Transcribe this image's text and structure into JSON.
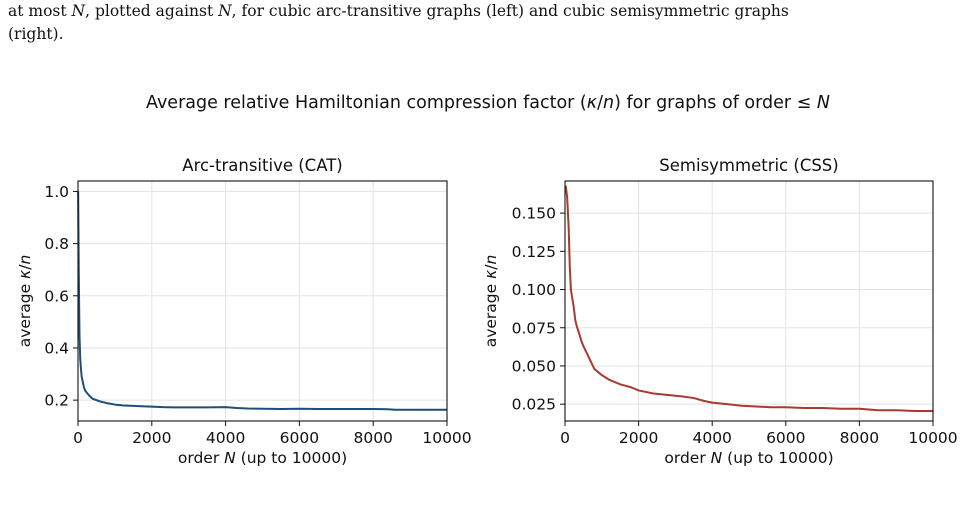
{
  "caption": {
    "line1_prefix": "at most ",
    "line1_var": "N",
    "line1_mid": ", plotted against ",
    "line1_var2": "N",
    "line1_suffix": ", for cubic arc-transitive graphs (left) and cubic semisymmetric graphs",
    "line2": "(right)."
  },
  "figure": {
    "suptitle_prefix": "Average relative Hamiltonian compression factor (",
    "suptitle_kappa": "κ",
    "suptitle_slash": "/",
    "suptitle_n": "n",
    "suptitle_mid": ") for graphs of order ",
    "suptitle_le": "≤",
    "suptitle_N": "N"
  },
  "chart_data": [
    {
      "type": "line",
      "title": "Arc-transitive (CAT)",
      "xlabel": "order N (up to 10000)",
      "ylabel": "average κ/n",
      "color": "#1f4e79",
      "xlim": [
        0,
        10000
      ],
      "ylim": [
        0.12,
        1.04
      ],
      "xticks": [
        0,
        2000,
        4000,
        6000,
        8000,
        10000
      ],
      "xtick_labels": [
        "0",
        "2000",
        "4000",
        "6000",
        "8000",
        "10000"
      ],
      "yticks": [
        0.2,
        0.4,
        0.6,
        0.8,
        1.0
      ],
      "ytick_labels": [
        "0.2",
        "0.4",
        "0.6",
        "0.8",
        "1.0"
      ],
      "grid": true,
      "series": [
        {
          "x": [
            4,
            20,
            40,
            60,
            80,
            100,
            130,
            160,
            200,
            260,
            320,
            400,
            500,
            600,
            800,
            1000,
            1200,
            1500,
            1800,
            2000,
            2300,
            2600,
            3000,
            3500,
            4000,
            4300,
            4600,
            5000,
            5500,
            6000,
            6500,
            7000,
            7500,
            8000,
            8400,
            8600,
            9000,
            9500,
            10000
          ],
          "y": [
            1.0,
            0.7,
            0.45,
            0.36,
            0.32,
            0.29,
            0.27,
            0.25,
            0.235,
            0.225,
            0.215,
            0.205,
            0.2,
            0.195,
            0.188,
            0.183,
            0.18,
            0.178,
            0.176,
            0.175,
            0.173,
            0.172,
            0.172,
            0.172,
            0.173,
            0.17,
            0.168,
            0.167,
            0.166,
            0.167,
            0.166,
            0.166,
            0.166,
            0.166,
            0.165,
            0.163,
            0.163,
            0.163,
            0.163
          ]
        }
      ]
    },
    {
      "type": "line",
      "title": "Semisymmetric (CSS)",
      "xlabel": "order N (up to 10000)",
      "ylabel": "average κ/n",
      "color": "#a83a2e",
      "xlim": [
        0,
        10000
      ],
      "ylim": [
        0.014,
        0.171
      ],
      "xticks": [
        0,
        2000,
        4000,
        6000,
        8000,
        10000
      ],
      "xtick_labels": [
        "0",
        "2000",
        "4000",
        "6000",
        "8000",
        "10000"
      ],
      "yticks": [
        0.025,
        0.05,
        0.075,
        0.1,
        0.125,
        0.15
      ],
      "ytick_labels": [
        "0.025",
        "0.050",
        "0.075",
        "0.100",
        "0.125",
        "0.150"
      ],
      "grid": true,
      "series": [
        {
          "x": [
            20,
            60,
            100,
            130,
            160,
            200,
            240,
            280,
            320,
            360,
            400,
            450,
            500,
            600,
            700,
            800,
            900,
            1000,
            1200,
            1500,
            1800,
            2000,
            2400,
            2800,
            3200,
            3500,
            3800,
            4000,
            4400,
            4800,
            5200,
            5600,
            6000,
            6500,
            7000,
            7500,
            8000,
            8500,
            9000,
            9500,
            10000
          ],
          "y": [
            0.168,
            0.16,
            0.14,
            0.115,
            0.1,
            0.094,
            0.088,
            0.08,
            0.076,
            0.073,
            0.07,
            0.066,
            0.063,
            0.058,
            0.053,
            0.048,
            0.046,
            0.044,
            0.041,
            0.038,
            0.036,
            0.034,
            0.032,
            0.031,
            0.03,
            0.029,
            0.027,
            0.026,
            0.025,
            0.024,
            0.0235,
            0.023,
            0.023,
            0.0225,
            0.0225,
            0.022,
            0.022,
            0.021,
            0.021,
            0.0205,
            0.0205
          ]
        }
      ]
    }
  ]
}
